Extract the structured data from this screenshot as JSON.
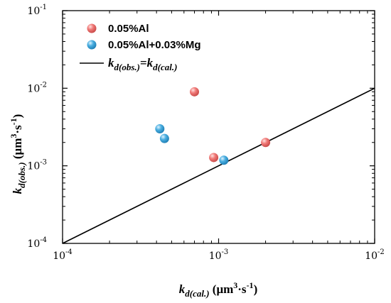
{
  "chart_data": {
    "type": "scatter",
    "xscale": "log",
    "yscale": "log",
    "xlim": [
      0.0001,
      0.01
    ],
    "ylim": [
      0.0001,
      0.1
    ],
    "grid": false,
    "legend_position": "top-left",
    "x_ticks": [
      {
        "value": 0.0001,
        "base": "10",
        "exp": "-4"
      },
      {
        "value": 0.001,
        "base": "10",
        "exp": "-3"
      },
      {
        "value": 0.01,
        "base": "10",
        "exp": "-2"
      }
    ],
    "y_ticks": [
      {
        "value": 0.0001,
        "base": "10",
        "exp": "-4"
      },
      {
        "value": 0.001,
        "base": "10",
        "exp": "-3"
      },
      {
        "value": 0.01,
        "base": "10",
        "exp": "-2"
      },
      {
        "value": 0.1,
        "base": "10",
        "exp": "-1"
      }
    ],
    "xlabel": {
      "k": "k",
      "sub": "d(cal.)",
      "unit_pre": " (μm",
      "unit_sup": "3",
      "unit_mid": "·s",
      "unit_sup2": "-1",
      "unit_post": ")"
    },
    "ylabel": {
      "k": "k",
      "sub": "d(obs.)",
      "unit_pre": " (μm",
      "unit_sup": "3",
      "unit_mid": "·s",
      "unit_sup2": "-1",
      "unit_post": ")"
    },
    "series": [
      {
        "name": "0.05%Al",
        "color": "#f07a78",
        "points": [
          {
            "x": 0.0007,
            "y": 0.009
          },
          {
            "x": 0.00093,
            "y": 0.00128
          },
          {
            "x": 0.002,
            "y": 0.002
          }
        ]
      },
      {
        "name": "0.05%Al+0.03%Mg",
        "color": "#4aaee0",
        "points": [
          {
            "x": 0.00042,
            "y": 0.003
          },
          {
            "x": 0.00045,
            "y": 0.00225
          },
          {
            "x": 0.00108,
            "y": 0.00118
          }
        ]
      }
    ],
    "reference_line": {
      "label_left": "k",
      "label_left_sub": "d(obs.)",
      "label_eq": "=",
      "label_right": "k",
      "label_right_sub": "d(cal.)",
      "from": [
        0.0001,
        0.0001
      ],
      "to": [
        0.01,
        0.01
      ]
    }
  }
}
